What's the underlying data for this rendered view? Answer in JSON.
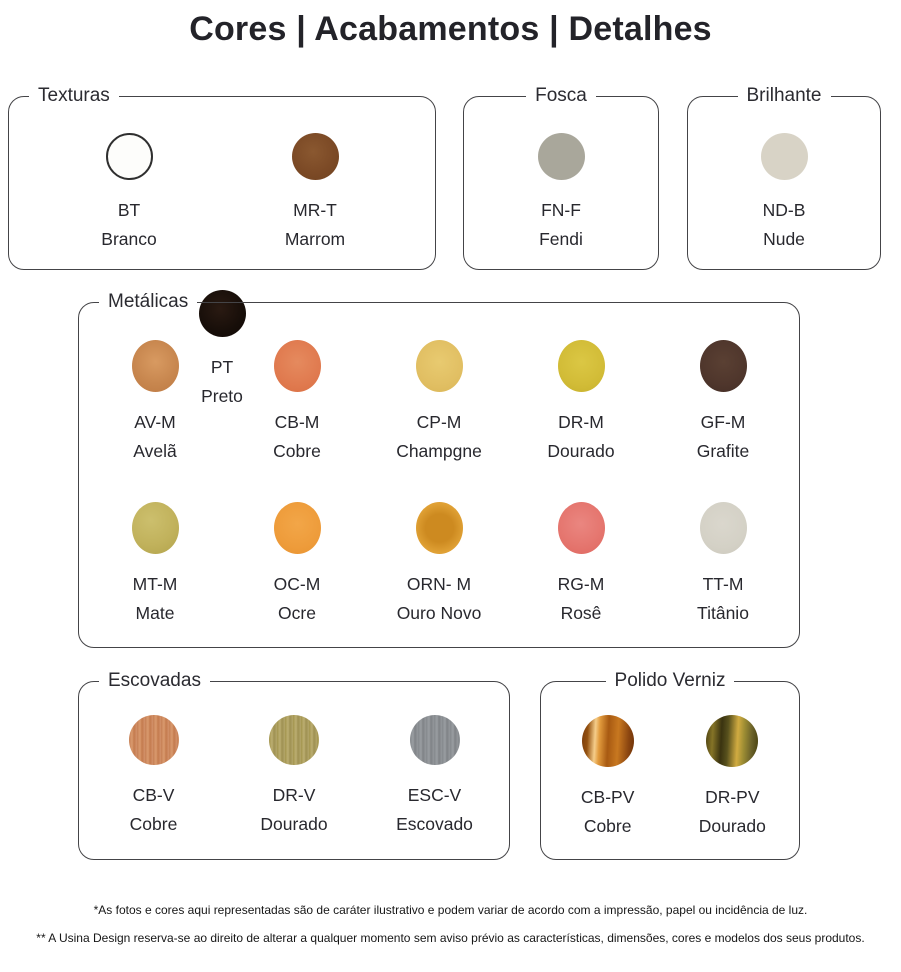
{
  "title": "Cores | Acabamentos | Detalhes",
  "groups": [
    {
      "id": "texturas",
      "label": "Texturas",
      "items": [
        {
          "code": "BT",
          "name": "Branco",
          "color": "#fdfdfb",
          "css": "#fdfdfb",
          "ring": "#2f2f2f"
        },
        {
          "code": "MR-T",
          "name": "Marrom",
          "color": "#7c4a26",
          "css": "radial-gradient(circle at 45% 40%, #8a5830 0%, #7c4a26 55%, #6f4220 100%)"
        },
        {
          "code": "PT",
          "name": "Preto",
          "color": "#170e09",
          "css": "radial-gradient(circle at 45% 40%, #2a1a12 0%, #170e09 60%, #100805 100%)"
        }
      ]
    },
    {
      "id": "fosca",
      "label": "Fosca",
      "items": [
        {
          "code": "FN-F",
          "name": "Fendi",
          "color": "#a9a79b",
          "css": "#a9a79b"
        }
      ]
    },
    {
      "id": "brilhante",
      "label": "Brilhante",
      "items": [
        {
          "code": "ND-B",
          "name": "Nude",
          "color": "#d8d3c6",
          "css": "#d8d3c6"
        }
      ]
    },
    {
      "id": "metalicas",
      "label": "Metálicas",
      "items": [
        {
          "code": "AV-M",
          "name": "Avelã",
          "color": "#c8874f",
          "css": "radial-gradient(circle at 50% 42%, #d89a61 0%, #c8874f 55%, #bd7a43 100%)"
        },
        {
          "code": "CB-M",
          "name": "Cobre",
          "color": "#e07a4f",
          "css": "radial-gradient(circle at 50% 42%, #e58a5e 0%, #e07a4f 60%, #d96f43 100%)"
        },
        {
          "code": "CP-M",
          "name": "Champgne",
          "color": "#e1bf63",
          "css": "radial-gradient(circle at 50% 42%, #e8ca70 0%, #e1bf63 60%, #dab657 100%)"
        },
        {
          "code": "DR-M",
          "name": "Dourado",
          "color": "#d2bc37",
          "css": "radial-gradient(circle at 50% 42%, #dbc744 0%, #d2bc37 60%, #c6b02c 100%)"
        },
        {
          "code": "GF-M",
          "name": "Grafite",
          "color": "#4f362c",
          "css": "radial-gradient(circle at 50% 42%, #5a4033 0%, #4f362c 60%, #422d25 100%)"
        },
        {
          "code": "MT-M",
          "name": "Mate",
          "color": "#c1b25c",
          "css": "radial-gradient(circle at 40% 35%, #ccbf6d 0%, #c1b25c 55%, #b2a34b 100%)"
        },
        {
          "code": "OC-M",
          "name": "Ocre",
          "color": "#ee9c3b",
          "css": "radial-gradient(circle at 50% 42%, #f2a648 0%, #ee9c3b 60%, #e89330 100%)"
        },
        {
          "code": "ORN- M",
          "name": "Ouro Novo",
          "color": "#dd9a2e",
          "css": "radial-gradient(circle at 50% 50%, #cd8a20 0%, #cd8a20 40%, #e0a135 70%, #dd9a2e 100%)"
        },
        {
          "code": "RG-M",
          "name": "Rosê",
          "color": "#e5766f",
          "css": "radial-gradient(circle at 48% 42%, #ea8680 0%, #e5766f 55%, #df675f 100%)"
        },
        {
          "code": "TT-M",
          "name": "Titânio",
          "color": "#d4d1c6",
          "css": "radial-gradient(circle at 48% 42%, #dad7cd 0%, #d4d1c6 60%, #ccc9bd 100%)"
        }
      ]
    },
    {
      "id": "escovadas",
      "label": "Escovadas",
      "items": [
        {
          "code": "CB-V",
          "name": "Cobre",
          "color": "#cd8a61",
          "css": "repeating-linear-gradient(90deg, #c68055 0px, #d99a6e 3px, #c47b4e 5px, #d3916a 8px)"
        },
        {
          "code": "DR-V",
          "name": "Dourado",
          "color": "#aa9c60",
          "css": "repeating-linear-gradient(90deg, #a3954e 0px, #bcae72 3px, #9e9152 5px, #b3a569 8px)"
        },
        {
          "code": "ESC-V",
          "name": "Escovado",
          "color": "#8c9094",
          "css": "repeating-linear-gradient(90deg, #84888c 0px, #9a9ea2 3px, #7f8286 5px, #94989c 8px)"
        }
      ]
    },
    {
      "id": "polido-verniz",
      "label": "Polido Verniz",
      "items": [
        {
          "code": "CB-PV",
          "name": "Cobre",
          "color": "#b2651a",
          "css": "linear-gradient(93deg, #7a3d0e 0%, #93500f 12%, #f5cd8a 26%, #e19a3c 34%, #a85a12 50%, #c87820 68%, #8a4510 88%, #6e3208 100%)"
        },
        {
          "code": "DR-PV",
          "name": "Dourado",
          "color": "#8c7d2a",
          "css": "linear-gradient(93deg, #4a4012 0%, #857427 14%, #3a3310 30%, #58511d 42%, #d1ab41 60%, #9c8c33 72%, #6b622a 86%, #46400f 100%)"
        }
      ]
    }
  ],
  "footnotes": [
    "*As fotos e cores aqui representadas são de caráter ilustrativo e podem variar de acordo com a impressão, papel ou incidência de luz.",
    "** A Usina Design reserva-se ao direito de alterar a qualquer momento sem aviso prévio as características, dimensões, cores e modelos dos seus produtos."
  ]
}
